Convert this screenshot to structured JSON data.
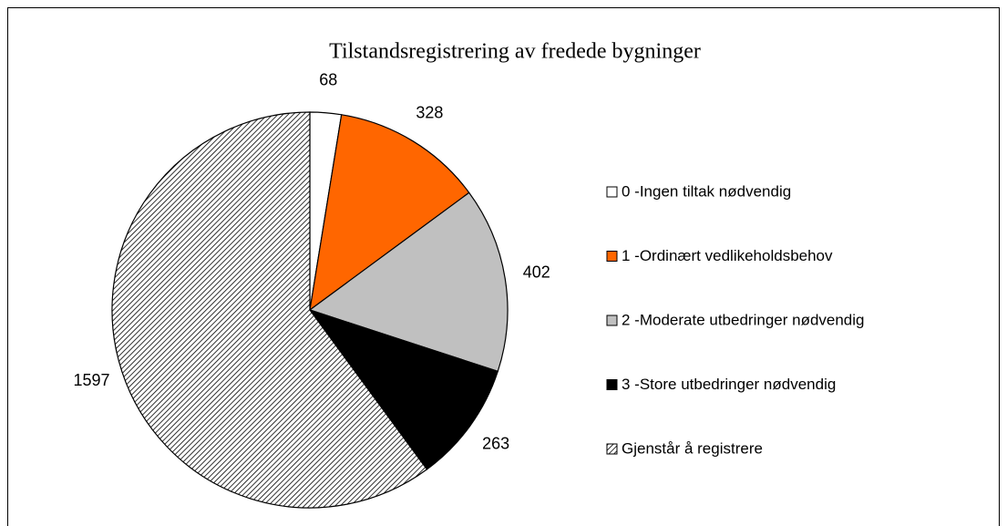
{
  "chart_data": {
    "type": "pie",
    "title": "Tilstandsregistrering av fredede bygninger",
    "categories": [
      "0 -Ingen tiltak nødvendig",
      "1 -Ordinært vedlikeholdsbehov",
      "2 -Moderate utbedringer nødvendig",
      "3 -Store utbedringer nødvendig",
      "Gjenstår å registrere"
    ],
    "values": [
      68,
      328,
      402,
      263,
      1597
    ],
    "colors": [
      "#ffffff",
      "#ff6600",
      "#c0c0c0",
      "#000000",
      "#000000"
    ],
    "hatched": [
      false,
      false,
      false,
      false,
      true
    ],
    "legend": "right"
  }
}
